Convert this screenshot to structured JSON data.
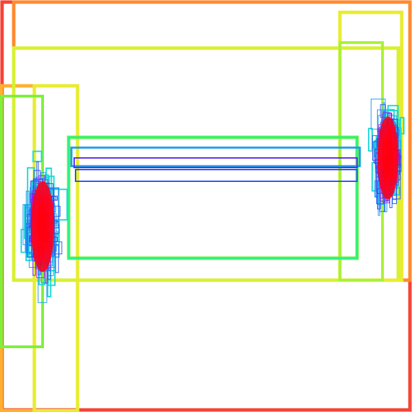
{
  "title": "",
  "diagram": {
    "type": "nested-rectangles",
    "colors": {
      "background": "#ffffff",
      "depth_palette": [
        "#f44336",
        "#ff7a2f",
        "#ffb030",
        "#e8ec30",
        "#c8f232",
        "#7cf23a",
        "#28f28a",
        "#1ed8d8",
        "#1e9bf0",
        "#2a57f2",
        "#5a2cf2",
        "#9a20f2",
        "#d420c8",
        "#ff1a4a",
        "#ff0010"
      ]
    },
    "clusters": [
      {
        "name": "left-cluster",
        "density": "high"
      },
      {
        "name": "right-cluster",
        "density": "high"
      }
    ]
  }
}
